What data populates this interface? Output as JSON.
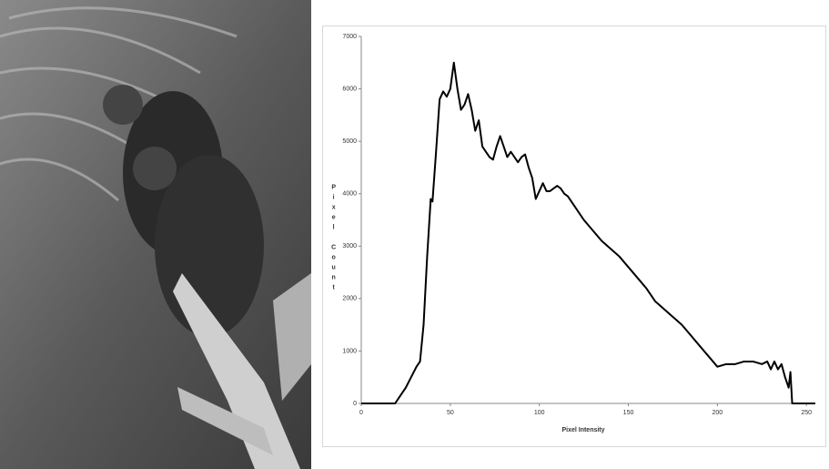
{
  "chart_data": {
    "type": "line",
    "x_label": "Pixel Intensity",
    "y_label": "Pixel Count",
    "x": [
      0,
      10,
      19,
      22,
      25,
      28,
      31,
      33,
      35,
      37,
      39,
      40,
      42,
      44,
      46,
      48,
      50,
      52,
      54,
      56,
      58,
      60,
      62,
      64,
      66,
      68,
      70,
      72,
      74,
      76,
      78,
      80,
      82,
      84,
      86,
      88,
      90,
      92,
      94,
      96,
      98,
      100,
      102,
      104,
      106,
      108,
      110,
      112,
      114,
      116,
      118,
      120,
      125,
      130,
      135,
      140,
      145,
      150,
      155,
      160,
      165,
      170,
      175,
      180,
      185,
      190,
      195,
      200,
      205,
      210,
      215,
      220,
      225,
      228,
      230,
      232,
      234,
      236,
      238,
      240,
      241,
      242,
      245,
      255
    ],
    "values": [
      0,
      0,
      0,
      150,
      300,
      500,
      700,
      800,
      1500,
      2800,
      3900,
      3850,
      4800,
      5800,
      5950,
      5850,
      6000,
      6500,
      6000,
      5600,
      5700,
      5900,
      5600,
      5200,
      5400,
      4900,
      4800,
      4700,
      4650,
      4900,
      5100,
      4900,
      4700,
      4800,
      4700,
      4600,
      4700,
      4750,
      4500,
      4300,
      3900,
      4050,
      4200,
      4050,
      4050,
      4100,
      4150,
      4100,
      4000,
      3950,
      3850,
      3750,
      3500,
      3300,
      3100,
      2950,
      2800,
      2600,
      2400,
      2200,
      1950,
      1800,
      1650,
      1500,
      1300,
      1100,
      900,
      700,
      750,
      750,
      800,
      800,
      750,
      800,
      650,
      800,
      650,
      750,
      500,
      300,
      600,
      0,
      0,
      0
    ],
    "color": "#000000",
    "xlim": [
      0,
      255
    ],
    "xticks": [
      0,
      50,
      100,
      150,
      200,
      250
    ],
    "ylim": [
      0,
      7000
    ],
    "yticks": [
      0,
      1000,
      2000,
      3000,
      4000,
      5000,
      6000,
      7000
    ]
  }
}
